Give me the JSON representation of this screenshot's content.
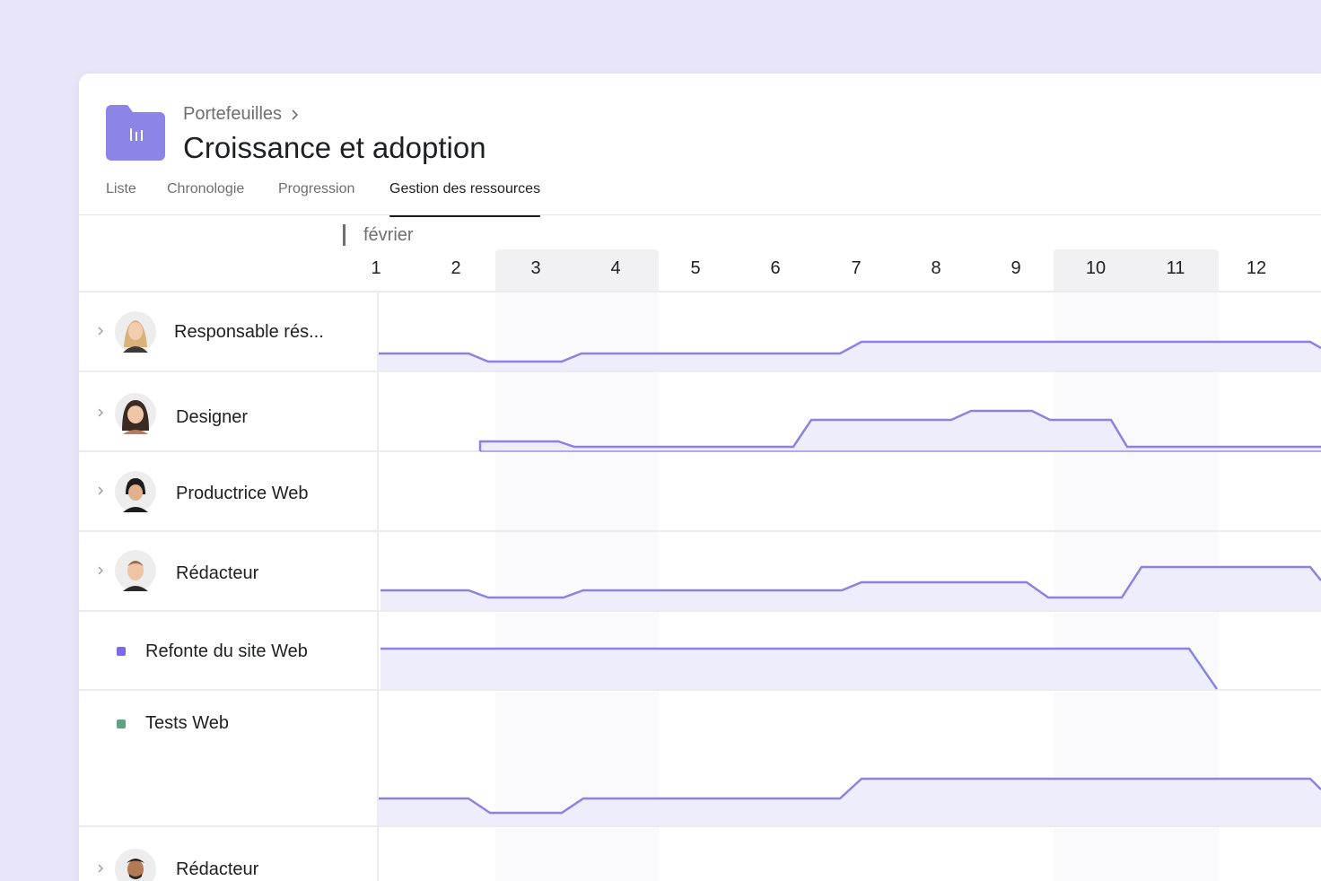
{
  "header": {
    "breadcrumb": "Portefeuilles",
    "breadcrumb_chevron_icon": "chevron-right-icon",
    "title": "Croissance et adoption",
    "folder_icon": "portfolio-folder-icon",
    "folder_color": "#8d84e8"
  },
  "tabs": [
    {
      "label": "Liste",
      "active": false
    },
    {
      "label": "Chronologie",
      "active": false
    },
    {
      "label": "Progression",
      "active": false
    },
    {
      "label": "Gestion des ressources",
      "active": true
    }
  ],
  "timeline": {
    "month": "février",
    "days": [
      "1",
      "2",
      "3",
      "4",
      "5",
      "6",
      "7",
      "8",
      "9",
      "10",
      "11",
      "12"
    ]
  },
  "rows": [
    {
      "type": "person",
      "label": "Responsable rés...",
      "expandable": true
    },
    {
      "type": "person",
      "label": "Designer",
      "expandable": true
    },
    {
      "type": "person",
      "label": "Productrice Web",
      "expandable": true
    },
    {
      "type": "person",
      "label": "Rédacteur",
      "expandable": true
    },
    {
      "type": "project",
      "label": "Refonte du site Web",
      "color": "#7b68ee"
    },
    {
      "type": "project",
      "label": "Tests Web",
      "color": "#5da283"
    },
    {
      "type": "person",
      "label": "Rédacteur",
      "expandable": true
    }
  ],
  "colors": {
    "accent": "#8d84e8",
    "workload_line": "#8b83e3",
    "workload_fill": "#eeedfb"
  }
}
